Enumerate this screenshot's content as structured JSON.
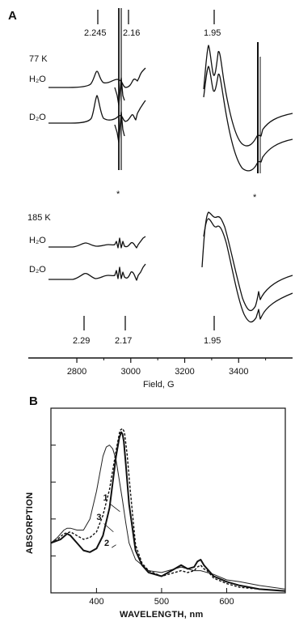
{
  "chart_data": [
    {
      "type": "line",
      "panel": "A",
      "xlabel": "Field, G",
      "x_ticks": [
        2800,
        3000,
        3200,
        3400
      ],
      "xlim": [
        2620,
        3600
      ],
      "groups": [
        {
          "temperature": "77 K",
          "series": [
            {
              "name": "H₂O",
              "sub": "2"
            },
            {
              "name": "D₂O",
              "sub": "2"
            }
          ],
          "g_markers": [
            {
              "label": "2.245",
              "field": 2880
            },
            {
              "label": "2.16",
              "field": 2990
            },
            {
              "label": "1.95",
              "field": 3305
            }
          ]
        },
        {
          "temperature": "185 K",
          "series": [
            {
              "name": "H₂O"
            },
            {
              "name": "D₂O"
            }
          ],
          "g_markers": [
            {
              "label": "2.29",
              "field": 2825
            },
            {
              "label": "2.17",
              "field": 2975
            },
            {
              "label": "1.95",
              "field": 3305
            }
          ]
        }
      ],
      "asterisk": "*"
    },
    {
      "type": "line",
      "panel": "B",
      "xlabel": "WAVELENGTH, nm",
      "ylabel": "ABSORPTION",
      "xlim": [
        330,
        690
      ],
      "x_ticks": [
        400,
        500,
        600
      ],
      "series": [
        {
          "label": "1",
          "style": "solid-thin",
          "x": [
            330,
            340,
            350,
            355,
            360,
            370,
            380,
            390,
            400,
            410,
            415,
            420,
            425,
            430,
            440,
            445,
            450,
            460,
            470,
            480,
            500,
            520,
            530,
            540,
            550,
            560,
            570,
            580,
            600,
            620,
            650,
            690
          ],
          "y": [
            0.27,
            0.3,
            0.34,
            0.35,
            0.35,
            0.34,
            0.34,
            0.4,
            0.55,
            0.74,
            0.79,
            0.8,
            0.78,
            0.72,
            0.5,
            0.38,
            0.27,
            0.18,
            0.15,
            0.12,
            0.11,
            0.13,
            0.14,
            0.13,
            0.12,
            0.12,
            0.11,
            0.1,
            0.07,
            0.06,
            0.04,
            0.02
          ]
        },
        {
          "label": "2",
          "style": "solid-thick",
          "x": [
            330,
            345,
            355,
            360,
            370,
            380,
            390,
            400,
            410,
            420,
            430,
            435,
            438,
            440,
            442,
            445,
            450,
            460,
            470,
            480,
            500,
            520,
            530,
            540,
            550,
            555,
            560,
            565,
            570,
            580,
            600,
            620,
            650,
            690
          ],
          "y": [
            0.27,
            0.29,
            0.32,
            0.31,
            0.27,
            0.23,
            0.22,
            0.24,
            0.31,
            0.46,
            0.74,
            0.84,
            0.87,
            0.86,
            0.82,
            0.7,
            0.48,
            0.23,
            0.15,
            0.11,
            0.09,
            0.13,
            0.15,
            0.13,
            0.14,
            0.17,
            0.18,
            0.15,
            0.13,
            0.09,
            0.06,
            0.04,
            0.02,
            0.01
          ]
        },
        {
          "label": "3",
          "style": "dashed",
          "x": [
            330,
            340,
            350,
            360,
            370,
            380,
            390,
            400,
            410,
            420,
            430,
            436,
            440,
            443,
            447,
            452,
            460,
            470,
            480,
            500,
            520,
            530,
            540,
            550,
            555,
            560,
            565,
            570,
            580,
            600,
            620,
            650,
            690
          ],
          "y": [
            0.27,
            0.29,
            0.32,
            0.33,
            0.31,
            0.29,
            0.3,
            0.33,
            0.42,
            0.56,
            0.77,
            0.88,
            0.89,
            0.87,
            0.75,
            0.55,
            0.26,
            0.16,
            0.12,
            0.09,
            0.11,
            0.12,
            0.11,
            0.12,
            0.14,
            0.15,
            0.13,
            0.12,
            0.08,
            0.05,
            0.03,
            0.02,
            0.01
          ]
        }
      ]
    }
  ]
}
